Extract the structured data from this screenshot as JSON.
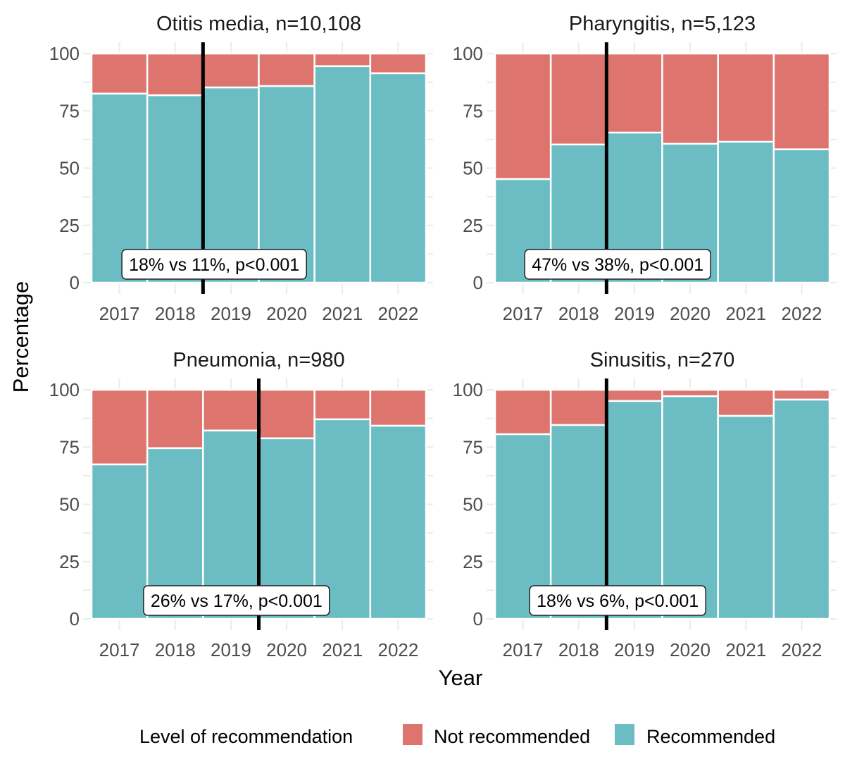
{
  "chart_data": {
    "type": "bar",
    "stacked": true,
    "xlabel": "Year",
    "ylabel": "Percentage",
    "ylim": [
      0,
      100
    ],
    "yticks": [
      0,
      25,
      50,
      75,
      100
    ],
    "categories": [
      "2017",
      "2018",
      "2019",
      "2020",
      "2021",
      "2022"
    ],
    "grid": true,
    "legend": {
      "title": "Level of recommendation",
      "placement": "bottom",
      "entries": [
        {
          "name": "Not recommended",
          "color": "#DD756E"
        },
        {
          "name": "Recommended",
          "color": "#6BBDC3"
        }
      ]
    },
    "panels": [
      {
        "title": "Otitis media, n=10,108",
        "series": [
          {
            "name": "Recommended",
            "values": [
              82.5,
              81.8,
              85.2,
              85.8,
              94.5,
              91.4
            ]
          },
          {
            "name": "Not recommended",
            "values": [
              17.5,
              18.2,
              14.8,
              14.2,
              5.5,
              8.6
            ]
          }
        ],
        "intervention_after": "2018",
        "annotation": "18% vs 11%, p<0.001"
      },
      {
        "title": "Pharyngitis, n=5,123",
        "series": [
          {
            "name": "Recommended",
            "values": [
              45.2,
              60.3,
              65.5,
              60.6,
              61.5,
              58.2
            ]
          },
          {
            "name": "Not recommended",
            "values": [
              54.8,
              39.7,
              34.5,
              39.4,
              38.5,
              41.8
            ]
          }
        ],
        "intervention_after": "2018",
        "annotation": "47% vs 38%, p<0.001"
      },
      {
        "title": "Pneumonia, n=980",
        "series": [
          {
            "name": "Recommended",
            "values": [
              67.4,
              74.5,
              82.2,
              78.8,
              87.1,
              84.3
            ]
          },
          {
            "name": "Not recommended",
            "values": [
              32.6,
              25.5,
              17.8,
              21.2,
              12.9,
              15.7
            ]
          }
        ],
        "intervention_after": "2019",
        "annotation": "26% vs 17%, p<0.001"
      },
      {
        "title": "Sinusitis, n=270",
        "series": [
          {
            "name": "Recommended",
            "values": [
              80.6,
              84.6,
              95.1,
              97.2,
              88.6,
              95.7
            ]
          },
          {
            "name": "Not recommended",
            "values": [
              19.4,
              15.4,
              4.9,
              2.8,
              11.4,
              4.3
            ]
          }
        ],
        "intervention_after": "2018",
        "annotation": "18% vs 6%, p<0.001"
      }
    ]
  }
}
